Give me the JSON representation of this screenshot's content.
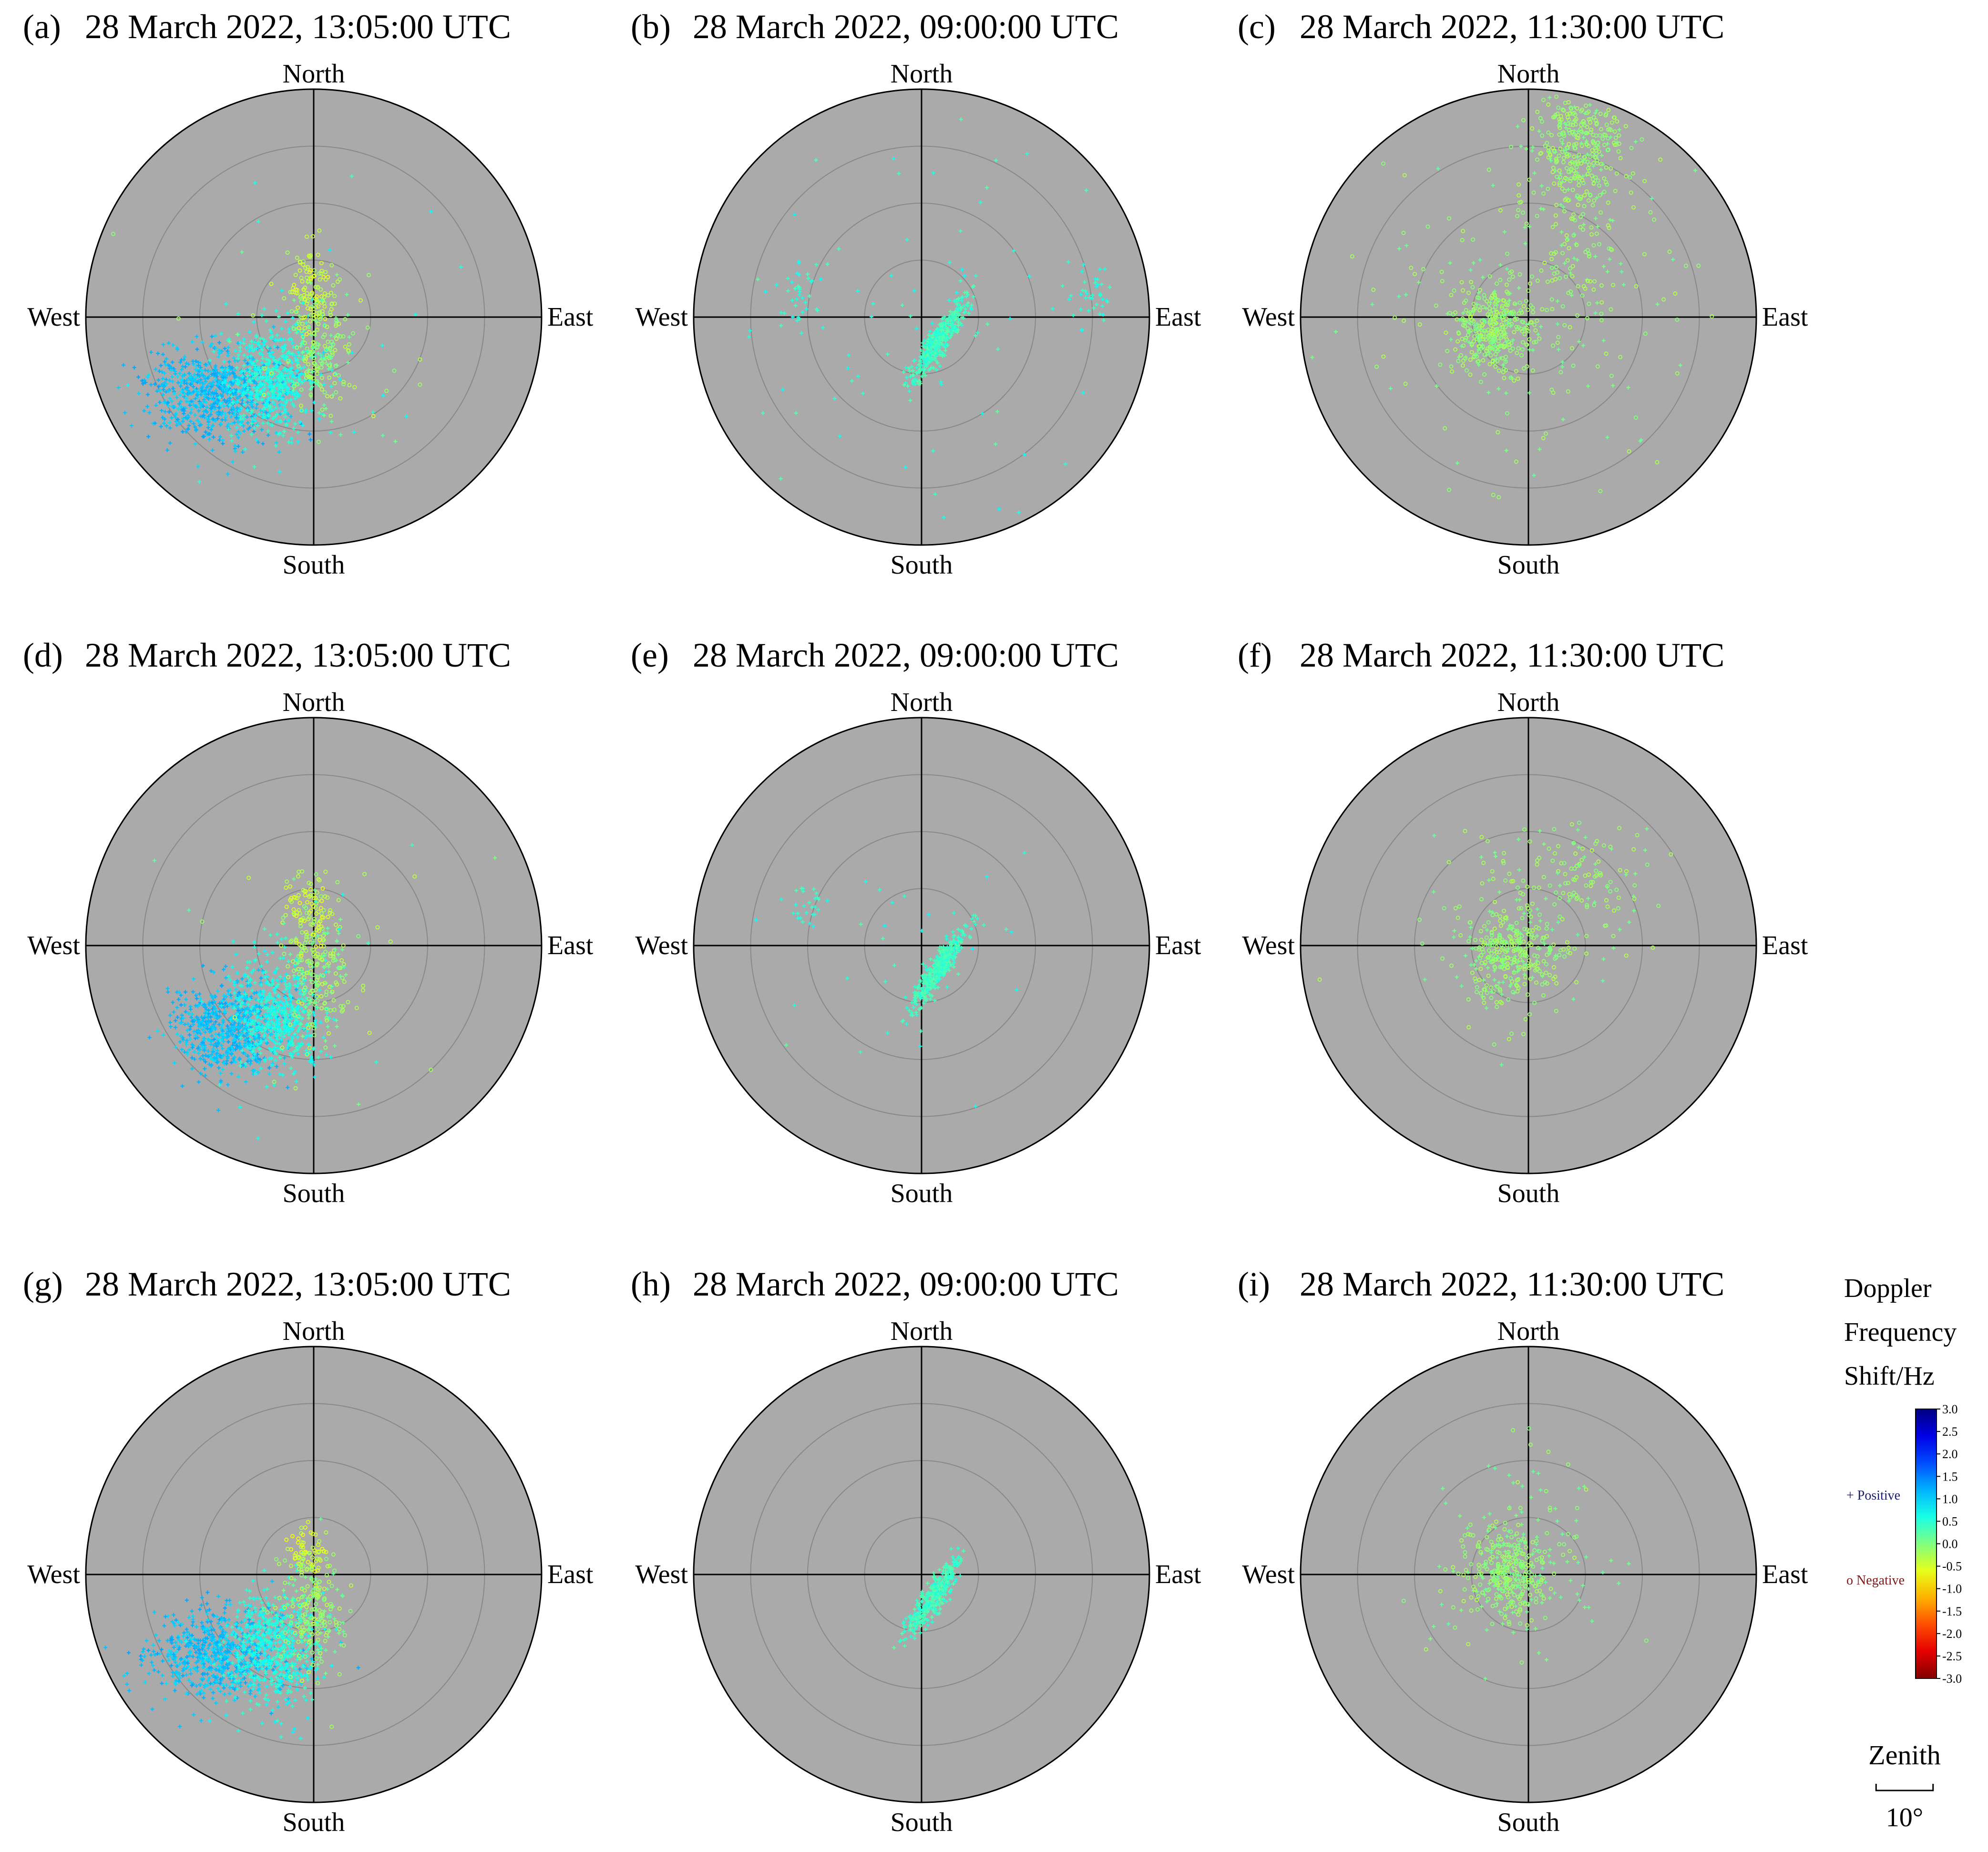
{
  "directions": {
    "north": "North",
    "south": "South",
    "east": "East",
    "west": "West"
  },
  "panels": [
    {
      "label": "(a)",
      "title": "28 March 2022, 13:05:00 UTC",
      "pattern": "A1"
    },
    {
      "label": "(b)",
      "title": "28 March 2022, 09:00:00 UTC",
      "pattern": "B1"
    },
    {
      "label": "(c)",
      "title": "28 March 2022, 11:30:00 UTC",
      "pattern": "C1"
    },
    {
      "label": "(d)",
      "title": "28 March 2022, 13:05:00 UTC",
      "pattern": "A2"
    },
    {
      "label": "(e)",
      "title": "28 March 2022, 09:00:00 UTC",
      "pattern": "B2"
    },
    {
      "label": "(f)",
      "title": "28 March 2022, 11:30:00 UTC",
      "pattern": "C2"
    },
    {
      "label": "(g)",
      "title": "28 March 2022, 13:05:00 UTC",
      "pattern": "A3"
    },
    {
      "label": "(h)",
      "title": "28 March 2022, 09:00:00 UTC",
      "pattern": "B3"
    },
    {
      "label": "(i)",
      "title": "28 March 2022, 11:30:00 UTC",
      "pattern": "C3"
    }
  ],
  "legend": {
    "title_lines": [
      "Doppler",
      "Frequency",
      "Shift/Hz"
    ],
    "ticks": [
      "3.0",
      "2.5",
      "2.0",
      "1.5",
      "1.0",
      "0.5",
      "0.0",
      "-0.5",
      "-1.0",
      "-1.5",
      "-2.0",
      "-2.5",
      "-3.0"
    ],
    "positive_label": "+ Positive",
    "negative_label": "o Negative",
    "positive_color": "#1a1a6e",
    "negative_color": "#7a1a1a"
  },
  "scale": {
    "title": "Zenith",
    "value": "10°"
  },
  "colors": {
    "plot_bg": "#aaaaaa",
    "ring": "#888888",
    "axis": "#000000"
  },
  "chart_data": {
    "type": "scatter",
    "coordinate_system": "polar (zenith angle vs azimuth)",
    "zenith_ring_step_deg": 10,
    "colorbar": {
      "quantity": "Doppler Frequency Shift/Hz",
      "min": -3.0,
      "max": 3.0,
      "colormap": "jet"
    },
    "patterns": {
      "A1": {
        "clusters": [
          {
            "center_deg": [
              -17,
              -13
            ],
            "spread_deg": [
              6,
              4
            ],
            "count": 720,
            "doppler_range": [
              0.9,
              1.3
            ]
          },
          {
            "center_deg": [
              -7,
              -11
            ],
            "spread_deg": [
              4,
              5
            ],
            "count": 560,
            "doppler_range": [
              0.4,
              0.8
            ]
          },
          {
            "center_deg": [
              1,
              -5
            ],
            "spread_deg": [
              2.5,
              6
            ],
            "count": 220,
            "doppler_range": [
              -0.4,
              0.2
            ]
          },
          {
            "center_deg": [
              -1,
              5
            ],
            "spread_deg": [
              2,
              4
            ],
            "count": 90,
            "doppler_range": [
              -0.7,
              -0.2
            ]
          },
          {
            "center_deg": [
              0,
              -2
            ],
            "spread_deg": [
              16,
              14
            ],
            "count": 40,
            "doppler_range": [
              -0.5,
              0.8
            ]
          }
        ]
      },
      "A2": {
        "clusters": [
          {
            "center_deg": [
              -15,
              -14
            ],
            "spread_deg": [
              5,
              4
            ],
            "count": 640,
            "doppler_range": [
              0.9,
              1.3
            ]
          },
          {
            "center_deg": [
              -6,
              -12
            ],
            "spread_deg": [
              4,
              5
            ],
            "count": 520,
            "doppler_range": [
              0.4,
              0.8
            ]
          },
          {
            "center_deg": [
              1,
              -4
            ],
            "spread_deg": [
              2.5,
              6
            ],
            "count": 220,
            "doppler_range": [
              -0.4,
              0.2
            ]
          },
          {
            "center_deg": [
              -1,
              6
            ],
            "spread_deg": [
              2,
              4
            ],
            "count": 90,
            "doppler_range": [
              -0.7,
              -0.2
            ]
          },
          {
            "center_deg": [
              0,
              -2
            ],
            "spread_deg": [
              14,
              12
            ],
            "count": 30,
            "doppler_range": [
              -0.5,
              0.8
            ]
          }
        ]
      },
      "A3": {
        "clusters": [
          {
            "center_deg": [
              -17,
              -14
            ],
            "spread_deg": [
              6,
              4
            ],
            "count": 660,
            "doppler_range": [
              0.9,
              1.3
            ]
          },
          {
            "center_deg": [
              -7,
              -13
            ],
            "spread_deg": [
              4,
              5
            ],
            "count": 540,
            "doppler_range": [
              0.4,
              0.8
            ]
          },
          {
            "center_deg": [
              0,
              -6
            ],
            "spread_deg": [
              3,
              5
            ],
            "count": 220,
            "doppler_range": [
              -0.4,
              0.2
            ]
          },
          {
            "center_deg": [
              -1,
              4
            ],
            "spread_deg": [
              2,
              2.5
            ],
            "count": 70,
            "doppler_range": [
              -0.7,
              -0.2
            ]
          }
        ]
      },
      "B1": {
        "clusters": [
          {
            "center_deg": [
              3,
              -4
            ],
            "spread_deg": [
              1.2,
              1.2
            ],
            "count": 420,
            "elongated": true,
            "doppler_range": [
              0.2,
              0.6
            ]
          },
          {
            "center_deg": [
              -21,
              4
            ],
            "spread_deg": [
              2,
              3
            ],
            "count": 40,
            "doppler_range": [
              0.3,
              0.7
            ]
          },
          {
            "center_deg": [
              29,
              4
            ],
            "spread_deg": [
              2,
              3
            ],
            "count": 40,
            "doppler_range": [
              0.3,
              0.7
            ]
          },
          {
            "center_deg": [
              0,
              0
            ],
            "spread_deg": [
              20,
              22
            ],
            "count": 90,
            "doppler_range": [
              0.2,
              0.8
            ]
          }
        ]
      },
      "B2": {
        "clusters": [
          {
            "center_deg": [
              3,
              -4
            ],
            "spread_deg": [
              1.2,
              1.2
            ],
            "count": 420,
            "elongated": true,
            "doppler_range": [
              0.2,
              0.6
            ]
          },
          {
            "center_deg": [
              -20,
              7
            ],
            "spread_deg": [
              1.5,
              2
            ],
            "count": 25,
            "doppler_range": [
              0.3,
              0.7
            ]
          },
          {
            "center_deg": [
              -2,
              1
            ],
            "spread_deg": [
              12,
              12
            ],
            "count": 30,
            "doppler_range": [
              0.2,
              0.8
            ]
          }
        ]
      },
      "B3": {
        "clusters": [
          {
            "center_deg": [
              2,
              -4
            ],
            "spread_deg": [
              1.2,
              1.2
            ],
            "count": 360,
            "elongated": true,
            "doppler_range": [
              0.2,
              0.6
            ]
          }
        ]
      },
      "C1": {
        "clusters": [
          {
            "center_deg": [
              -6,
              -2
            ],
            "spread_deg": [
              3.5,
              4
            ],
            "count": 380,
            "doppler_range": [
              -0.3,
              0.1
            ]
          },
          {
            "center_deg": [
              9,
              31
            ],
            "spread_deg": [
              4,
              5
            ],
            "count": 320,
            "doppler_range": [
              -0.3,
              0.1
            ]
          },
          {
            "center_deg": [
              8,
              14
            ],
            "spread_deg": [
              5,
              9
            ],
            "count": 150,
            "doppler_range": [
              -0.3,
              0.1
            ]
          },
          {
            "center_deg": [
              0,
              0
            ],
            "spread_deg": [
              18,
              16
            ],
            "count": 150,
            "doppler_range": [
              -0.3,
              0.2
            ]
          }
        ]
      },
      "C2": {
        "clusters": [
          {
            "center_deg": [
              -3,
              -2
            ],
            "spread_deg": [
              4,
              4
            ],
            "count": 300,
            "doppler_range": [
              -0.3,
              0.1
            ]
          },
          {
            "center_deg": [
              6,
              12
            ],
            "spread_deg": [
              7,
              5
            ],
            "count": 140,
            "doppler_range": [
              -0.3,
              0.1
            ]
          },
          {
            "center_deg": [
              0,
              2
            ],
            "spread_deg": [
              10,
              9
            ],
            "count": 80,
            "doppler_range": [
              -0.3,
              0.2
            ]
          }
        ]
      },
      "C3": {
        "clusters": [
          {
            "center_deg": [
              -3,
              0
            ],
            "spread_deg": [
              3.5,
              4
            ],
            "count": 300,
            "doppler_range": [
              -0.3,
              0.1
            ]
          },
          {
            "center_deg": [
              0,
              2
            ],
            "spread_deg": [
              8,
              9
            ],
            "count": 150,
            "doppler_range": [
              -0.3,
              0.2
            ]
          }
        ]
      }
    }
  }
}
